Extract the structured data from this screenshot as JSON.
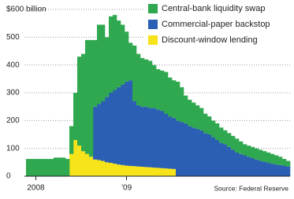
{
  "chart_data": {
    "type": "stacked-area",
    "categories": [
      null,
      null,
      "2008",
      null,
      null,
      null,
      null,
      null,
      null,
      null,
      null,
      null,
      null,
      null,
      null,
      null,
      null,
      null,
      null,
      null,
      null,
      null,
      null,
      null,
      null,
      "’09",
      null,
      null,
      null,
      null,
      null,
      null,
      null,
      null,
      null,
      null,
      null,
      null,
      null,
      null,
      null,
      null,
      null,
      null,
      null,
      null,
      null,
      null,
      null,
      null,
      null,
      null,
      null,
      null,
      null,
      null,
      null,
      null,
      null,
      null,
      null,
      null,
      null,
      null,
      null,
      null,
      null
    ],
    "series": [
      {
        "name": "Central-bank liquidity swap",
        "color": "#2fa84f",
        "values": [
          62,
          62,
          62,
          62,
          62,
          62,
          62,
          67,
          67,
          67,
          62,
          100,
          170,
          320,
          350,
          410,
          420,
          240,
          285,
          275,
          215,
          275,
          270,
          240,
          215,
          180,
          135,
          200,
          185,
          175,
          170,
          170,
          155,
          145,
          145,
          150,
          140,
          135,
          140,
          125,
          100,
          95,
          90,
          85,
          80,
          70,
          65,
          60,
          60,
          55,
          50,
          50,
          50,
          50,
          45,
          40,
          40,
          40,
          40,
          40,
          38,
          37,
          35,
          33,
          30,
          24,
          20
        ]
      },
      {
        "name": "Commercial-paper backstop",
        "color": "#2b5fb4",
        "values": [
          0,
          0,
          0,
          0,
          0,
          0,
          0,
          0,
          0,
          0,
          0,
          0,
          0,
          0,
          0,
          0,
          0,
          190,
          202,
          215,
          235,
          252,
          265,
          278,
          290,
          302,
          308,
          234,
          220,
          216,
          217,
          213,
          214,
          210,
          206,
          197,
          188,
          184,
          200,
          195,
          190,
          180,
          175,
          170,
          165,
          155,
          150,
          140,
          130,
          120,
          115,
          105,
          95,
          85,
          80,
          75,
          70,
          65,
          60,
          55,
          52,
          48,
          45,
          42,
          40,
          38,
          35
        ]
      },
      {
        "name": "Discount-window lending",
        "color": "#f6e31a",
        "values": [
          0,
          0,
          0,
          0,
          0,
          0,
          0,
          0,
          0,
          0,
          0,
          80,
          130,
          110,
          90,
          80,
          70,
          60,
          58,
          55,
          50,
          48,
          45,
          42,
          40,
          38,
          37,
          36,
          35,
          34,
          33,
          32,
          31,
          30,
          29,
          28,
          27,
          26,
          0,
          0,
          0,
          0,
          0,
          0,
          0,
          0,
          0,
          0,
          0,
          0,
          0,
          0,
          0,
          0,
          0,
          0,
          0,
          0,
          0,
          0,
          0,
          0,
          0,
          0,
          0,
          0,
          0
        ]
      }
    ],
    "ylim": [
      0,
      600
    ],
    "yticks": [
      0,
      100,
      200,
      300,
      400,
      500,
      {
        "value": 600,
        "label": "$600 billion"
      }
    ],
    "grid": true,
    "legend": "top-right",
    "source": "Source: Federal Reserve"
  }
}
